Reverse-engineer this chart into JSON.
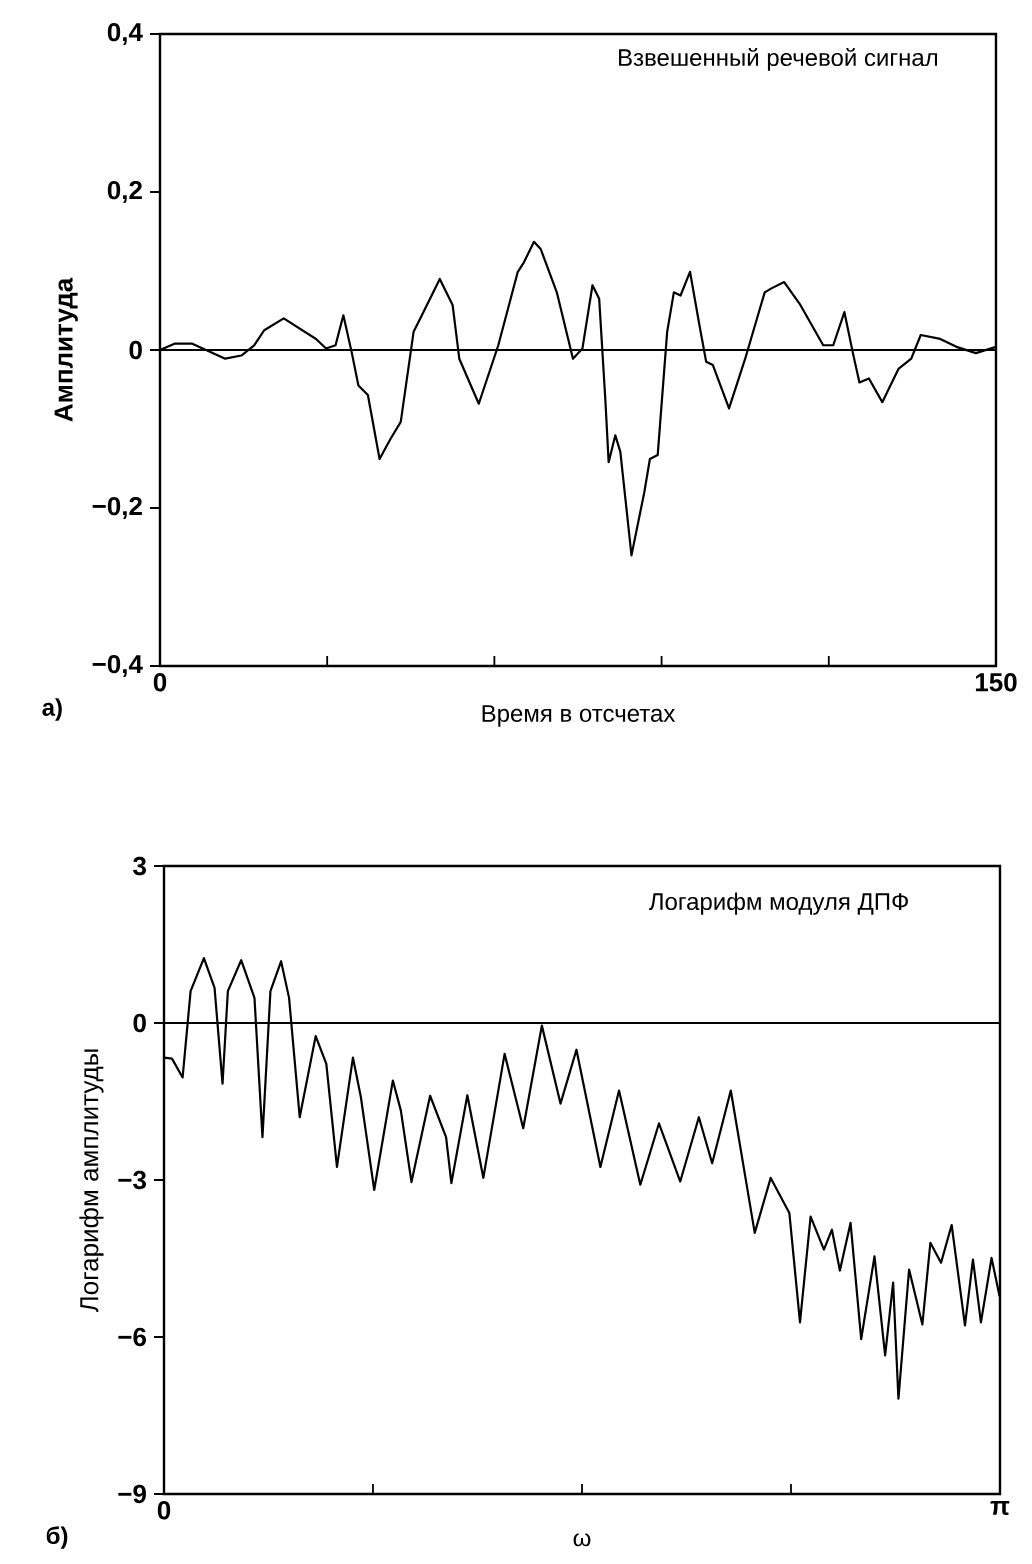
{
  "chart_data": [
    {
      "type": "line",
      "title": "Взвешенный речевой сигнал",
      "xlabel": "Время в отсчетах",
      "ylabel": "Амплитуда",
      "xlim": [
        0,
        150
      ],
      "ylim": [
        -0.4,
        0.4
      ],
      "xticks": [
        0,
        {
          "value": 30,
          "label": null
        },
        {
          "value": 60,
          "label": null
        },
        {
          "value": 90,
          "label": null
        },
        {
          "value": 120,
          "label": null
        },
        150
      ],
      "yticks": [
        {
          "value": -0.4,
          "label": "−0,4"
        },
        {
          "value": -0.2,
          "label": "−0,2"
        },
        0,
        {
          "value": 0.2,
          "label": "0,2"
        },
        {
          "value": 0.4,
          "label": "0,4"
        }
      ],
      "ref_lines": [
        {
          "axis": "y",
          "value": 0
        }
      ],
      "annotations": [
        "а)"
      ],
      "x": [
        0,
        2.6,
        5.8,
        11.7,
        14.6,
        16.9,
        18.7,
        22.2,
        28,
        29.8,
        31.5,
        32.9,
        34.4,
        35.6,
        37.3,
        39.4,
        41.4,
        43.2,
        45.5,
        46.7,
        50.2,
        52.5,
        53.7,
        57.2,
        60.7,
        64.2,
        65.3,
        67.1,
        68.3,
        71.2,
        74.1,
        75.8,
        77.6,
        78.8,
        79.9,
        80.5,
        81.7,
        82.6,
        84.6,
        86.9,
        87.9,
        89.3,
        91,
        92.2,
        93.4,
        95.1,
        96.8,
        98,
        99.2,
        102.1,
        105,
        108.5,
        109.7,
        112,
        114.9,
        119,
        120.8,
        122.8,
        124.3,
        125.5,
        127.2,
        129.6,
        132.5,
        134.8,
        136.5,
        140,
        142.9,
        146.4,
        150
      ],
      "series": [
        {
          "color": "#000000",
          "values": [
            0,
            0.008,
            0.008,
            -0.011,
            -0.007,
            0.006,
            0.025,
            0.04,
            0.014,
            0.002,
            0.006,
            0.044,
            -0.003,
            -0.045,
            -0.057,
            -0.138,
            -0.112,
            -0.091,
            0.023,
            0.04,
            0.09,
            0.057,
            -0.011,
            -0.068,
            0.006,
            0.099,
            0.111,
            0.137,
            0.128,
            0.073,
            -0.011,
            0.002,
            0.082,
            0.065,
            -0.062,
            -0.142,
            -0.108,
            -0.129,
            -0.26,
            -0.18,
            -0.138,
            -0.133,
            0.023,
            0.073,
            0.069,
            0.099,
            0.031,
            -0.015,
            -0.019,
            -0.074,
            -0.011,
            0.073,
            0.078,
            0.086,
            0.057,
            0.006,
            0.006,
            0.048,
            -0.003,
            -0.041,
            -0.036,
            -0.066,
            -0.024,
            -0.011,
            0.019,
            0.014,
            0.004,
            -0.004,
            0.004
          ]
        }
      ]
    },
    {
      "type": "line",
      "title": "Логарифм модуля ДПФ",
      "xlabel": "ω",
      "ylabel": "Логарифм амплитуды",
      "xlim": [
        0,
        3.1416
      ],
      "ylim": [
        -9,
        3
      ],
      "xticks": [
        0,
        {
          "value": 0.7854,
          "label": null
        },
        {
          "value": 1.5708,
          "label": null
        },
        {
          "value": 2.3562,
          "label": null
        },
        {
          "value": 3.1416,
          "label": "π"
        }
      ],
      "yticks": [
        {
          "value": -9,
          "label": "−9"
        },
        {
          "value": -6,
          "label": "−6"
        },
        {
          "value": -3,
          "label": "−3"
        },
        0,
        3
      ],
      "ref_lines": [
        {
          "axis": "y",
          "value": 0
        }
      ],
      "annotations": [
        "б)"
      ],
      "x": [
        0,
        0.03,
        0.07,
        0.1,
        0.15,
        0.19,
        0.22,
        0.24,
        0.29,
        0.34,
        0.37,
        0.4,
        0.44,
        0.47,
        0.51,
        0.57,
        0.61,
        0.65,
        0.71,
        0.74,
        0.79,
        0.86,
        0.89,
        0.93,
        1.0,
        1.06,
        1.08,
        1.14,
        1.2,
        1.28,
        1.35,
        1.42,
        1.49,
        1.55,
        1.64,
        1.71,
        1.79,
        1.86,
        1.94,
        2.01,
        2.06,
        2.13,
        2.22,
        2.28,
        2.35,
        2.39,
        2.43,
        2.48,
        2.51,
        2.54,
        2.58,
        2.62,
        2.67,
        2.71,
        2.74,
        2.76,
        2.8,
        2.85,
        2.88,
        2.92,
        2.96,
        3.01,
        3.04,
        3.07,
        3.11,
        3.14
      ],
      "series": [
        {
          "color": "#000000",
          "values": [
            -0.66,
            -0.68,
            -1.04,
            0.61,
            1.24,
            0.67,
            -1.16,
            0.61,
            1.2,
            0.48,
            -2.18,
            0.61,
            1.18,
            0.48,
            -1.8,
            -0.25,
            -0.78,
            -2.75,
            -0.66,
            -1.42,
            -3.19,
            -1.1,
            -1.67,
            -3.04,
            -1.39,
            -2.18,
            -3.06,
            -1.38,
            -2.96,
            -0.59,
            -2.01,
            -0.05,
            -1.54,
            -0.51,
            -2.75,
            -1.29,
            -3.09,
            -1.92,
            -3.03,
            -1.8,
            -2.68,
            -1.29,
            -4.01,
            -2.96,
            -3.63,
            -5.72,
            -3.7,
            -4.33,
            -3.95,
            -4.73,
            -3.82,
            -6.04,
            -4.46,
            -6.35,
            -4.96,
            -7.18,
            -4.71,
            -5.76,
            -4.2,
            -4.58,
            -3.86,
            -5.78,
            -4.52,
            -5.72,
            -4.49,
            -5.22
          ]
        }
      ]
    }
  ]
}
